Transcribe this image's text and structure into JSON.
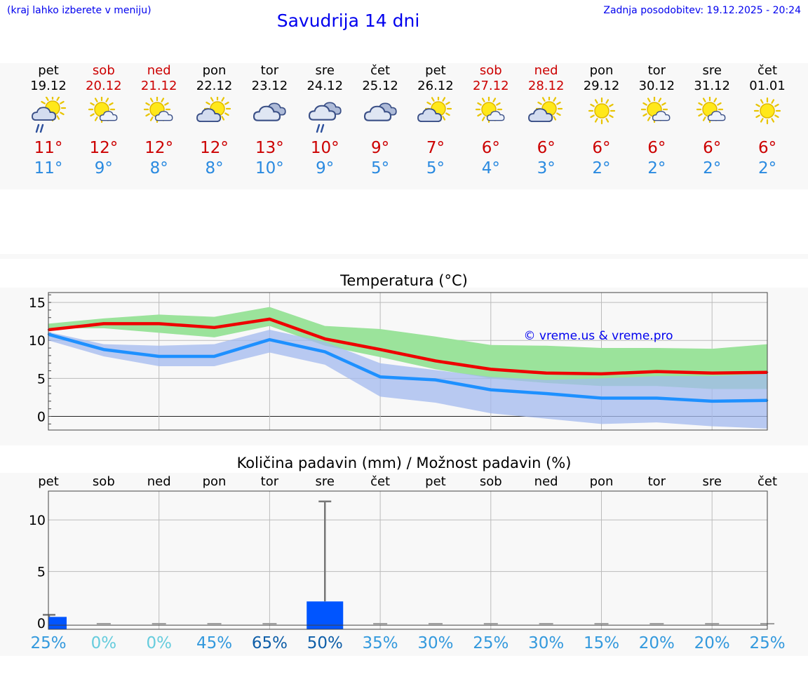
{
  "header": {
    "hint": "(kraj lahko izberete v meniju)",
    "title": "Savudrija 14 dni",
    "updated": "Zadnja posodobitev: 19.12.2025 - 20:24"
  },
  "days": [
    {
      "name": "pet",
      "date": "19.12",
      "weekend": false,
      "icon": "sun-cloud-rain-icon",
      "tmax": "11°",
      "tmin": "11°"
    },
    {
      "name": "sob",
      "date": "20.12",
      "weekend": true,
      "icon": "sun-small-cloud-icon",
      "tmax": "12°",
      "tmin": "9°"
    },
    {
      "name": "ned",
      "date": "21.12",
      "weekend": true,
      "icon": "sun-small-cloud-icon",
      "tmax": "12°",
      "tmin": "8°"
    },
    {
      "name": "pon",
      "date": "22.12",
      "weekend": false,
      "icon": "sun-cloud-icon",
      "tmax": "12°",
      "tmin": "8°"
    },
    {
      "name": "tor",
      "date": "23.12",
      "weekend": false,
      "icon": "cloudy-icon",
      "tmax": "13°",
      "tmin": "10°"
    },
    {
      "name": "sre",
      "date": "24.12",
      "weekend": false,
      "icon": "cloud-rain-icon",
      "tmax": "10°",
      "tmin": "9°"
    },
    {
      "name": "čet",
      "date": "25.12",
      "weekend": false,
      "icon": "cloudy-icon",
      "tmax": "9°",
      "tmin": "5°"
    },
    {
      "name": "pet",
      "date": "26.12",
      "weekend": false,
      "icon": "sun-cloud-icon",
      "tmax": "7°",
      "tmin": "5°"
    },
    {
      "name": "sob",
      "date": "27.12",
      "weekend": true,
      "icon": "sun-small-cloud-icon",
      "tmax": "6°",
      "tmin": "4°"
    },
    {
      "name": "ned",
      "date": "28.12",
      "weekend": true,
      "icon": "sun-cloud-icon",
      "tmax": "6°",
      "tmin": "3°"
    },
    {
      "name": "pon",
      "date": "29.12",
      "weekend": false,
      "icon": "sun-icon",
      "tmax": "6°",
      "tmin": "2°"
    },
    {
      "name": "tor",
      "date": "30.12",
      "weekend": false,
      "icon": "sun-small-cloud-icon",
      "tmax": "6°",
      "tmin": "2°"
    },
    {
      "name": "sre",
      "date": "31.12",
      "weekend": false,
      "icon": "sun-small-cloud-icon",
      "tmax": "6°",
      "tmin": "2°"
    },
    {
      "name": "čet",
      "date": "01.01",
      "weekend": false,
      "icon": "sun-icon",
      "tmax": "6°",
      "tmin": "2°"
    }
  ],
  "chart_data": [
    {
      "type": "line",
      "title": "Temperatura (°C)",
      "watermark": "© vreme.us & vreme.pro",
      "ylim": [
        -1.8,
        16.3
      ],
      "yticks": [
        "15",
        "10",
        "5",
        "0"
      ],
      "ytick_values": [
        15,
        10,
        5,
        0
      ],
      "x": [
        0,
        1,
        2,
        3,
        4,
        5,
        6,
        7,
        8,
        9,
        10,
        11,
        12,
        13
      ],
      "series": [
        {
          "name": "max",
          "color": "#ee0000",
          "values": [
            11.4,
            12.2,
            12.2,
            11.7,
            12.8,
            10.2,
            8.8,
            7.3,
            6.2,
            5.7,
            5.6,
            5.9,
            5.7,
            5.8
          ]
        },
        {
          "name": "min",
          "color": "#1e90ff",
          "values": [
            10.8,
            8.8,
            7.9,
            7.9,
            10.1,
            8.5,
            5.2,
            4.8,
            3.5,
            3.0,
            2.4,
            2.4,
            2.0,
            2.1
          ]
        }
      ],
      "bands": [
        {
          "name": "max-range",
          "color": "#9be39b",
          "low": [
            11.6,
            11.6,
            11.0,
            10.4,
            11.9,
            9.3,
            7.8,
            6.2,
            5.0,
            4.4,
            4.0,
            4.0,
            3.6,
            3.6
          ],
          "high": [
            12.2,
            12.9,
            13.4,
            13.1,
            14.4,
            11.9,
            11.5,
            10.5,
            9.4,
            9.3,
            9.0,
            9.0,
            8.9,
            9.5
          ]
        },
        {
          "name": "min-range",
          "color": "#a3b9ef",
          "low": [
            10.0,
            7.9,
            6.6,
            6.6,
            8.4,
            6.8,
            2.6,
            1.8,
            0.4,
            -0.3,
            -1.0,
            -0.8,
            -1.3,
            -1.6
          ],
          "high": [
            11.1,
            9.5,
            9.3,
            9.5,
            11.4,
            9.8,
            7.0,
            6.1,
            5.2,
            4.8,
            5.0,
            5.3,
            5.3,
            5.6
          ]
        }
      ]
    },
    {
      "type": "bar",
      "title": "Količina padavin (mm) / Možnost padavin (%)",
      "categories": [
        "pet",
        "sob",
        "ned",
        "pon",
        "tor",
        "sre",
        "čet",
        "pet",
        "sob",
        "ned",
        "pon",
        "tor",
        "sre",
        "čet"
      ],
      "ylim": [
        -0.6,
        12.8
      ],
      "yticks": [
        "10",
        "5",
        "0"
      ],
      "ytick_values": [
        10,
        5,
        0
      ],
      "values": [
        0.6,
        0,
        0,
        0,
        0,
        2.1,
        0,
        0,
        0,
        0,
        0,
        0,
        0,
        0
      ],
      "error_max": [
        0.8,
        0,
        0,
        0,
        0,
        11.8,
        0,
        0,
        0,
        0,
        0,
        0,
        0,
        0
      ],
      "bar_color": "#0055ff",
      "probabilities": [
        "25%",
        "0%",
        "0%",
        "45%",
        "65%",
        "50%",
        "35%",
        "30%",
        "25%",
        "30%",
        "15%",
        "20%",
        "20%",
        "25%"
      ],
      "probability_colors": [
        "#3399dd",
        "#66ccdd",
        "#66ccdd",
        "#3399dd",
        "#0e5ea8",
        "#0e5ea8",
        "#3399dd",
        "#3399dd",
        "#3399dd",
        "#3399dd",
        "#3399dd",
        "#3399dd",
        "#3399dd",
        "#3399dd"
      ]
    }
  ]
}
